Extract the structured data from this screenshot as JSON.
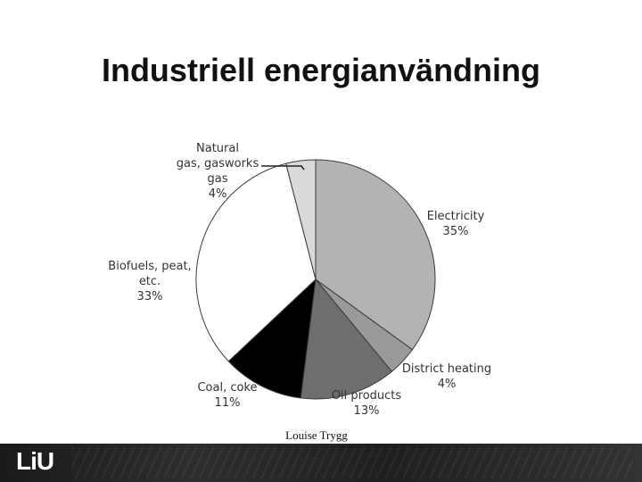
{
  "slide": {
    "title": "Industriell energianvändning",
    "author": "Louise Trygg",
    "logo": "LiU"
  },
  "chart_data": {
    "type": "pie",
    "start": "12 o'clock, clockwise",
    "slices": [
      {
        "label_lines": [
          "Electricity",
          "35%"
        ],
        "value": 35,
        "color": "#b3b3b3"
      },
      {
        "label_lines": [
          "District heating",
          "4%"
        ],
        "value": 4,
        "color": "#9a9a9a"
      },
      {
        "label_lines": [
          "Oil products",
          "13%"
        ],
        "value": 13,
        "color": "#6e6e6e"
      },
      {
        "label_lines": [
          "Coal, coke",
          "11%"
        ],
        "value": 11,
        "color": "#000000"
      },
      {
        "label_lines": [
          "Biofuels, peat,",
          "etc.",
          "33%"
        ],
        "value": 33,
        "color": "#ffffff"
      },
      {
        "label_lines": [
          "Natural",
          "gas, gasworks",
          "gas",
          "4%"
        ],
        "value": 4,
        "color": "#d9d9d9"
      }
    ]
  }
}
